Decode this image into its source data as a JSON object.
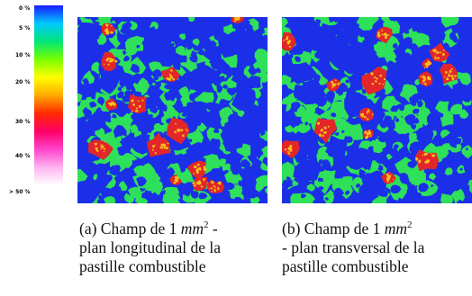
{
  "colorbar": {
    "ticks": [
      "0 %",
      "5 %",
      "10 %",
      "20 %",
      "30 %",
      "40 %",
      "> 50 %"
    ],
    "colors": [
      "#1a1aff",
      "#00c8ff",
      "#00e678",
      "#78ff00",
      "#ffff00",
      "#ffaa00",
      "#ff2a00",
      "#ff0066",
      "#ff44cc",
      "#ffb4f0",
      "#ffffff"
    ]
  },
  "panels": [
    {
      "caption": {
        "prefix": "(a)  Champ de 1 ",
        "unit": "mm",
        "exp": "2",
        "suffix": " -",
        "line2": "plan longitudinal de la",
        "line3": "pastille combustible"
      },
      "colors": {
        "matrix": "#1c2fe8",
        "phase": "#2ee05a",
        "hot": "#e2262a",
        "warm": "#f5c21a"
      }
    },
    {
      "caption": {
        "prefix": "(b)  Champ de 1 ",
        "unit": "mm",
        "exp": "2",
        "suffix": "",
        "line2": "- plan transversal de la",
        "line3": "pastille combustible"
      },
      "colors": {
        "matrix": "#1c2fe8",
        "phase": "#2ee05a",
        "hot": "#e2262a",
        "warm": "#f5c21a"
      }
    }
  ]
}
